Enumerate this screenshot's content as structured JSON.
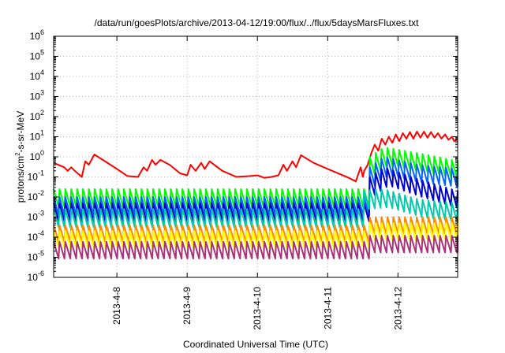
{
  "chart_data": {
    "type": "line",
    "title": "/data/run/goesPlots/archive/2013-04-12/19:00/flux/../flux/5daysMarsFluxes.txt",
    "xlabel": "Coordinated Universal Time (UTC)",
    "ylabel": "protons/cm²-s-sr-MeV",
    "ylabel_parts": {
      "pre": "protons/cm",
      "sup": "2",
      "post": "-s-sr-MeV"
    },
    "yscale": "log",
    "ylim": [
      1e-06,
      1000000.0
    ],
    "xlim": [
      7.1,
      12.85
    ],
    "x_ticks": [
      {
        "x": 8,
        "label": "2013-4-8"
      },
      {
        "x": 9,
        "label": "2013-4-9"
      },
      {
        "x": 10,
        "label": "2013-4-10"
      },
      {
        "x": 11,
        "label": "2013-4-11"
      },
      {
        "x": 12,
        "label": "2013-4-12"
      }
    ],
    "y_ticks": [
      {
        "exp": -6,
        "base": "10",
        "sup": "-6"
      },
      {
        "exp": -5,
        "base": "10",
        "sup": "-5"
      },
      {
        "exp": -4,
        "base": "10",
        "sup": "-4"
      },
      {
        "exp": -3,
        "base": "10",
        "sup": "-3"
      },
      {
        "exp": -2,
        "base": "10",
        "sup": "-2"
      },
      {
        "exp": -1,
        "base": "10",
        "sup": "-1"
      },
      {
        "exp": 0,
        "base": "10",
        "sup": "0"
      },
      {
        "exp": 1,
        "base": "10",
        "sup": "1"
      },
      {
        "exp": 2,
        "base": "10",
        "sup": "2"
      },
      {
        "exp": 3,
        "base": "10",
        "sup": "3"
      },
      {
        "exp": 4,
        "base": "10",
        "sup": "4"
      },
      {
        "exp": 5,
        "base": "10",
        "sup": "5"
      },
      {
        "exp": 6,
        "base": "10",
        "sup": "6"
      }
    ],
    "grid": true,
    "legend": "none",
    "series": [
      {
        "color": "#ff0000",
        "values": [
          [
            7.1,
            0.5
          ],
          [
            7.25,
            0.3
          ],
          [
            7.3,
            0.2
          ],
          [
            7.35,
            0.3
          ],
          [
            7.4,
            0.2
          ],
          [
            7.5,
            0.1
          ],
          [
            7.55,
            0.6
          ],
          [
            7.6,
            0.4
          ],
          [
            7.68,
            1.3
          ],
          [
            7.8,
            0.7
          ],
          [
            8.0,
            0.25
          ],
          [
            8.15,
            0.11
          ],
          [
            8.3,
            0.1
          ],
          [
            8.38,
            0.3
          ],
          [
            8.43,
            0.2
          ],
          [
            8.5,
            0.7
          ],
          [
            8.55,
            0.4
          ],
          [
            8.62,
            0.7
          ],
          [
            8.75,
            0.4
          ],
          [
            8.9,
            0.15
          ],
          [
            9.0,
            0.12
          ],
          [
            9.05,
            0.4
          ],
          [
            9.12,
            0.2
          ],
          [
            9.2,
            0.5
          ],
          [
            9.25,
            0.25
          ],
          [
            9.32,
            0.6
          ],
          [
            9.5,
            0.2
          ],
          [
            9.7,
            0.1
          ],
          [
            9.9,
            0.11
          ],
          [
            10.0,
            0.12
          ],
          [
            10.1,
            0.09
          ],
          [
            10.2,
            0.1
          ],
          [
            10.3,
            0.12
          ],
          [
            10.37,
            0.4
          ],
          [
            10.42,
            0.2
          ],
          [
            10.5,
            0.6
          ],
          [
            10.55,
            0.3
          ],
          [
            10.62,
            1.2
          ],
          [
            10.8,
            0.5
          ],
          [
            11.0,
            0.25
          ],
          [
            11.3,
            0.09
          ],
          [
            11.4,
            0.06
          ],
          [
            11.47,
            0.3
          ],
          [
            11.5,
            0.1
          ],
          [
            11.52,
            0.2
          ],
          [
            11.57,
            0.4
          ],
          [
            11.62,
            1.5
          ],
          [
            11.67,
            4.0
          ],
          [
            11.72,
            2.0
          ],
          [
            11.77,
            8.0
          ],
          [
            11.82,
            4.0
          ],
          [
            11.87,
            10.0
          ],
          [
            11.92,
            5.0
          ],
          [
            11.97,
            13.0
          ],
          [
            12.02,
            6.0
          ],
          [
            12.07,
            15.0
          ],
          [
            12.12,
            8.0
          ],
          [
            12.17,
            17.0
          ],
          [
            12.22,
            8.0
          ],
          [
            12.27,
            18.0
          ],
          [
            12.32,
            9.0
          ],
          [
            12.37,
            18.0
          ],
          [
            12.42,
            9.0
          ],
          [
            12.47,
            17.0
          ],
          [
            12.52,
            9.0
          ],
          [
            12.57,
            15.0
          ],
          [
            12.62,
            8.0
          ],
          [
            12.67,
            13.0
          ],
          [
            12.72,
            7.0
          ],
          [
            12.77,
            10.0
          ],
          [
            12.8,
            6.0
          ],
          [
            12.85,
            8.0
          ]
        ]
      },
      {
        "color": "#00ff00",
        "base": 0.025,
        "amp": 8,
        "env": [
          [
            7.1,
            1
          ],
          [
            11.55,
            1
          ],
          [
            11.6,
            40
          ],
          [
            11.8,
            120
          ],
          [
            12.3,
            60
          ],
          [
            12.85,
            25
          ]
        ]
      },
      {
        "color": "#0066ff",
        "base": 0.01,
        "amp": 8,
        "env": [
          [
            7.1,
            1
          ],
          [
            11.55,
            1
          ],
          [
            11.6,
            30
          ],
          [
            11.8,
            100
          ],
          [
            12.3,
            40
          ],
          [
            12.85,
            25
          ]
        ]
      },
      {
        "color": "#0000cc",
        "base": 0.005,
        "amp": 8,
        "env": [
          [
            7.1,
            1
          ],
          [
            11.55,
            1
          ],
          [
            11.6,
            20
          ],
          [
            11.8,
            60
          ],
          [
            12.3,
            15
          ],
          [
            12.85,
            4
          ]
        ]
      },
      {
        "color": "#00ccaa",
        "base": 0.0025,
        "amp": 8,
        "env": [
          [
            7.1,
            1
          ],
          [
            11.45,
            1
          ],
          [
            11.5,
            8
          ],
          [
            11.8,
            10
          ],
          [
            12.3,
            3
          ],
          [
            12.85,
            2
          ]
        ]
      },
      {
        "color": "#ff8800",
        "base": 0.0004,
        "amp": 7,
        "env": [
          [
            7.1,
            1
          ],
          [
            11.55,
            1
          ],
          [
            11.6,
            2.5
          ],
          [
            12.85,
            2.5
          ]
        ]
      },
      {
        "color": "#ffff00",
        "base": 0.0002,
        "amp": 7,
        "env": [
          [
            7.1,
            1
          ],
          [
            11.55,
            1
          ],
          [
            11.6,
            2.5
          ],
          [
            12.85,
            2.5
          ]
        ]
      },
      {
        "color": "#aa3377",
        "base": 6e-05,
        "amp": 7,
        "env": [
          [
            7.1,
            1
          ],
          [
            11.55,
            1
          ],
          [
            11.6,
            2
          ],
          [
            12.85,
            2
          ]
        ]
      }
    ]
  }
}
